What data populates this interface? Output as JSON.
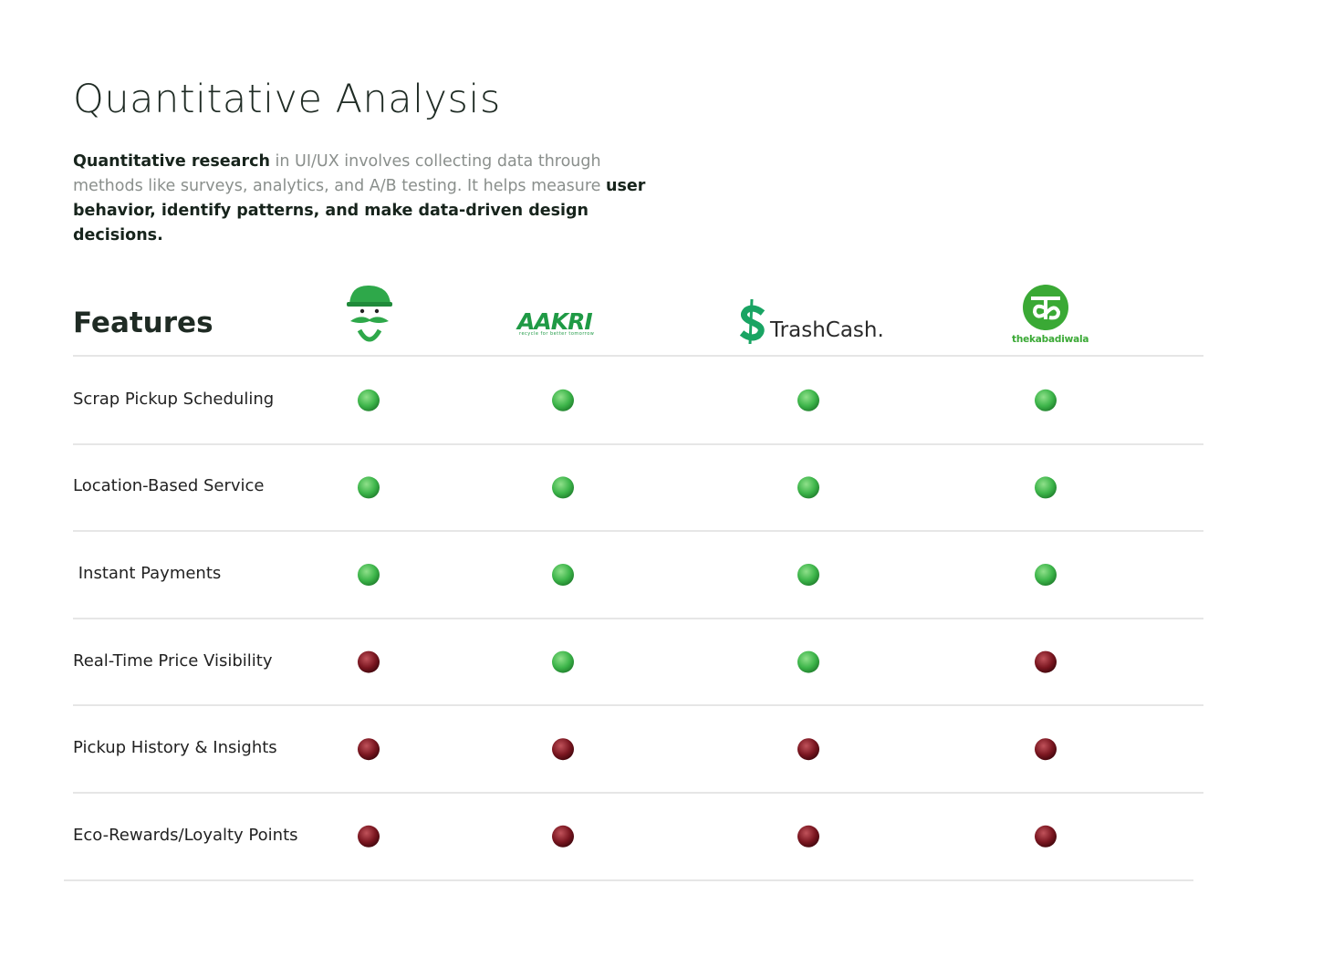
{
  "header": {
    "title": "Quantitative Analysis",
    "description": [
      {
        "text": "Quantitative research",
        "bold": true
      },
      {
        "text": " in UI/UX involves collecting data through methods like surveys, analytics, and A/B testing. It helps measure ",
        "bold": false
      },
      {
        "text": "user behavior, identify patterns, and make data-driven design decisions.",
        "bold": true
      }
    ]
  },
  "table": {
    "feature_header": "Features",
    "brands": [
      {
        "name": null,
        "tagline": null
      },
      {
        "name": "AAKRI",
        "tagline": "recycle for better tomorrow"
      },
      {
        "name": "TrashCash.",
        "tagline": null
      },
      {
        "name": "thekabadiwala",
        "tagline": null
      }
    ],
    "rows": [
      {
        "feature": "Scrap Pickup Scheduling",
        "support": [
          true,
          true,
          true,
          true
        ]
      },
      {
        "feature": "Location-Based Service",
        "support": [
          true,
          true,
          true,
          true
        ]
      },
      {
        "feature": " Instant Payments",
        "support": [
          true,
          true,
          true,
          true
        ]
      },
      {
        "feature": "Real-Time Price Visibility",
        "support": [
          false,
          true,
          true,
          false
        ]
      },
      {
        "feature": "Pickup History & Insights",
        "support": [
          false,
          false,
          false,
          false
        ]
      },
      {
        "feature": "Eco-Rewards/Loyalty Points",
        "support": [
          false,
          false,
          false,
          false
        ]
      }
    ],
    "colors": {
      "yes": "#3db54a",
      "no": "#7a1620"
    }
  }
}
